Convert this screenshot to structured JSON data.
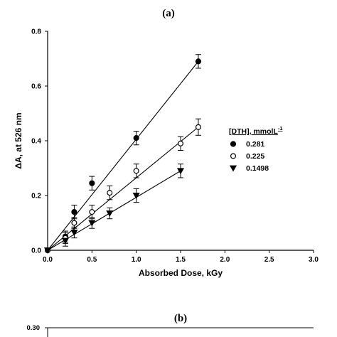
{
  "chart_data": [
    {
      "type": "scatter",
      "panel_label": "(a)",
      "xlabel": "Absorbed Dose, kGy",
      "ylabel": "ΔA, at 526 nm",
      "xlim": [
        0.0,
        3.0
      ],
      "ylim": [
        0.0,
        0.8
      ],
      "x_ticks": [
        "0.0",
        "0.5",
        "1.0",
        "1.5",
        "2.0",
        "2.5",
        "3.0"
      ],
      "y_ticks": [
        "0.0",
        "0.2",
        "0.4",
        "0.6",
        "0.8"
      ],
      "grid": false,
      "legend_position": "center-right",
      "legend_title": "[DTH], mmolL",
      "legend_title_superscript": "-1",
      "series": [
        {
          "name": "0.281",
          "marker": "filled-circle",
          "color": "#000000",
          "x": [
            0.0,
            0.2,
            0.3,
            0.5,
            1.0,
            1.7
          ],
          "y": [
            0.0,
            0.05,
            0.14,
            0.245,
            0.41,
            0.69
          ],
          "err": [
            0.0,
            0.02,
            0.025,
            0.025,
            0.025,
            0.025
          ],
          "fit": {
            "x": [
              0.0,
              1.7
            ],
            "y": [
              0.0,
              0.69
            ]
          }
        },
        {
          "name": "0.225",
          "marker": "open-circle",
          "color": "#000000",
          "x": [
            0.0,
            0.2,
            0.3,
            0.5,
            0.7,
            1.0,
            1.5,
            1.7
          ],
          "y": [
            0.0,
            0.045,
            0.1,
            0.14,
            0.21,
            0.29,
            0.39,
            0.45
          ],
          "err": [
            0.0,
            0.02,
            0.02,
            0.025,
            0.025,
            0.025,
            0.025,
            0.03
          ],
          "fit": {
            "x": [
              0.0,
              1.7
            ],
            "y": [
              0.0,
              0.45
            ]
          }
        },
        {
          "name": "0.1498",
          "marker": "filled-triangle-down",
          "color": "#000000",
          "x": [
            0.0,
            0.2,
            0.3,
            0.5,
            0.7,
            1.0,
            1.5
          ],
          "y": [
            0.0,
            0.035,
            0.065,
            0.1,
            0.135,
            0.2,
            0.29
          ],
          "err": [
            0.0,
            0.02,
            0.02,
            0.02,
            0.02,
            0.025,
            0.025
          ],
          "fit": {
            "x": [
              0.0,
              1.5
            ],
            "y": [
              0.0,
              0.29
            ]
          }
        }
      ]
    },
    {
      "type": "scatter",
      "panel_label": "(b)",
      "y_ticks": [
        "0.30"
      ]
    }
  ]
}
